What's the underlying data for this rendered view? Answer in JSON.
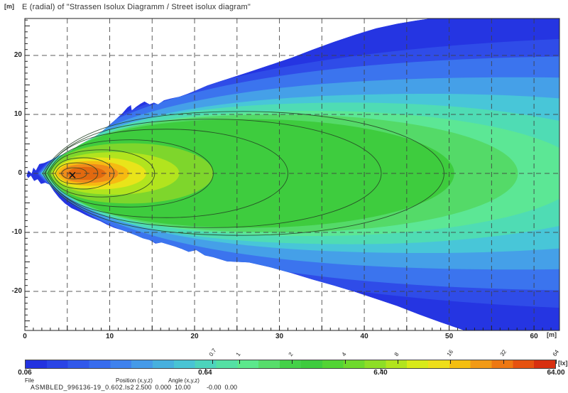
{
  "window": {
    "y_axis_unit": "[m]",
    "x_axis_unit": "[m]",
    "colorbar_unit": "[lx]"
  },
  "footer": {
    "file_label": "File",
    "file_value": "ASMBLED_996136-19_0.602.ls2",
    "position_label": "Position (x,y,z)",
    "position_value": "2.500  0.000  10.00",
    "angle_label": "Angle (x,y,z)",
    "angle_value": "-0.00  0.00"
  },
  "chart_data": {
    "type": "heatmap",
    "subtype": "isolux-contour-diagram",
    "title": "E (radial) of \"Strassen Isolux Diagramm / Street isolux diagram\"",
    "axes": {
      "x": {
        "min": 0,
        "max": 63,
        "unit": "m",
        "tick_step_minor": 1,
        "tick_step_major": 5,
        "labels": [
          {
            "m": 0,
            "label": "0"
          },
          {
            "m": 10,
            "label": "10"
          },
          {
            "m": 20,
            "label": "20"
          },
          {
            "m": 30,
            "label": "30"
          },
          {
            "m": 40,
            "label": "40"
          },
          {
            "m": 50,
            "label": "50"
          },
          {
            "m": 60,
            "label": "60"
          }
        ],
        "grid_m": [
          5,
          10,
          15,
          20,
          25,
          30,
          35,
          40,
          45,
          50,
          55,
          60
        ]
      },
      "y": {
        "min": -26.5,
        "max": 26.3,
        "unit": "m",
        "tick_step_minor": 1,
        "tick_step_major": 5,
        "labels": [
          {
            "m": 20,
            "label": "20"
          },
          {
            "m": 10,
            "label": "10"
          },
          {
            "m": 0,
            "label": "0"
          },
          {
            "m": -10,
            "label": "-10"
          },
          {
            "m": -20,
            "label": "-20"
          }
        ],
        "grid_m": [
          20,
          10,
          0,
          -10,
          -20
        ]
      }
    },
    "colorbar": {
      "scale": "log",
      "min_lx": 0.06,
      "max_lx": 64.0,
      "bottom_labels": [
        {
          "value": 0.06,
          "label": "0.06"
        },
        {
          "value": 0.64,
          "label": "0.64"
        },
        {
          "value": 6.4,
          "label": "6.40"
        },
        {
          "value": 64.0,
          "label": "64.00"
        }
      ],
      "top_tick_labels": [
        {
          "value": 0.7,
          "label": "0.7"
        },
        {
          "value": 1,
          "label": "1"
        },
        {
          "value": 2,
          "label": "2"
        },
        {
          "value": 4,
          "label": "4"
        },
        {
          "value": 8,
          "label": "8"
        },
        {
          "value": 16,
          "label": "16"
        },
        {
          "value": 32,
          "label": "32"
        },
        {
          "value": 64,
          "label": "64"
        }
      ],
      "colors": [
        "#2232e0",
        "#2a44e6",
        "#3158ea",
        "#386cee",
        "#3f82ee",
        "#459ae8",
        "#47b0de",
        "#49c4d4",
        "#4dd4bc",
        "#54e0a4",
        "#5ce88c",
        "#57dd6b",
        "#44d148",
        "#3ecc3e",
        "#52d434",
        "#6ed92c",
        "#8ede26",
        "#b2e41e",
        "#d8ea18",
        "#eede1a",
        "#f4be10",
        "#f29a16",
        "#ee7812",
        "#e65210",
        "#d83010"
      ]
    },
    "luminaire_marker_m": {
      "x": 5.6,
      "y": -0.3
    },
    "beam_outline_m": [
      [
        0.2,
        -0.4
      ],
      [
        0.4,
        0.5
      ],
      [
        0.8,
        0.0
      ],
      [
        1.0,
        1.0
      ],
      [
        1.3,
        0.5
      ],
      [
        1.7,
        1.6
      ],
      [
        2.3,
        1.8
      ],
      [
        3.1,
        2.3
      ],
      [
        3.9,
        2.9
      ],
      [
        4.8,
        3.4
      ],
      [
        5.6,
        4.0
      ],
      [
        6.4,
        4.8
      ],
      [
        7.3,
        5.5
      ],
      [
        8.1,
        6.1
      ],
      [
        9.0,
        7.0
      ],
      [
        9.8,
        8.0
      ],
      [
        10.6,
        9.0
      ],
      [
        11.5,
        10.2
      ],
      [
        12.1,
        11.2
      ],
      [
        12.5,
        11.6
      ],
      [
        12.6,
        10.7
      ],
      [
        13.1,
        11.3
      ],
      [
        13.6,
        11.8
      ],
      [
        14.1,
        12.2
      ],
      [
        14.7,
        11.7
      ],
      [
        15.2,
        12.0
      ],
      [
        15.7,
        11.7
      ],
      [
        16.4,
        12.4
      ],
      [
        17.2,
        12.7
      ],
      [
        18.2,
        13.0
      ],
      [
        19.2,
        13.5
      ],
      [
        20.2,
        14.1
      ],
      [
        21.5,
        14.9
      ],
      [
        23.8,
        16.0
      ],
      [
        26.4,
        17.2
      ],
      [
        28.9,
        18.4
      ],
      [
        31.4,
        19.6
      ],
      [
        33.9,
        21.0
      ],
      [
        36.4,
        22.3
      ],
      [
        38.9,
        23.5
      ],
      [
        41.4,
        24.6
      ],
      [
        43.9,
        25.4
      ],
      [
        46.0,
        25.9
      ],
      [
        47.9,
        26.3
      ],
      [
        63.0,
        26.3
      ],
      [
        63.0,
        -26.6
      ],
      [
        51.7,
        -26.6
      ],
      [
        48.9,
        -25.2
      ],
      [
        46.4,
        -23.9
      ],
      [
        43.9,
        -22.5
      ],
      [
        41.4,
        -21.3
      ],
      [
        38.9,
        -20.1
      ],
      [
        36.4,
        -19.0
      ],
      [
        33.9,
        -18.0
      ],
      [
        31.4,
        -16.9
      ],
      [
        28.9,
        -15.9
      ],
      [
        26.4,
        -15.1
      ],
      [
        23.8,
        -14.9
      ],
      [
        22.2,
        -14.2
      ],
      [
        21.2,
        -13.9
      ],
      [
        20.2,
        -13.0
      ],
      [
        19.3,
        -13.3
      ],
      [
        18.5,
        -12.8
      ],
      [
        17.7,
        -12.4
      ],
      [
        16.8,
        -12.0
      ],
      [
        16.1,
        -11.7
      ],
      [
        15.4,
        -11.9
      ],
      [
        14.7,
        -11.3
      ],
      [
        13.9,
        -11.0
      ],
      [
        13.1,
        -10.5
      ],
      [
        12.2,
        -10.0
      ],
      [
        11.4,
        -9.6
      ],
      [
        10.5,
        -9.2
      ],
      [
        9.7,
        -8.7
      ],
      [
        8.9,
        -8.1
      ],
      [
        8.0,
        -7.6
      ],
      [
        7.2,
        -7.1
      ],
      [
        6.4,
        -6.5
      ],
      [
        5.5,
        -5.9
      ],
      [
        4.7,
        -5.1
      ],
      [
        4.0,
        -4.1
      ],
      [
        3.4,
        -3.0
      ],
      [
        2.9,
        -1.9
      ],
      [
        2.4,
        -1.6
      ],
      [
        1.9,
        -1.8
      ],
      [
        1.5,
        -1.0
      ],
      [
        1.1,
        -1.3
      ],
      [
        0.7,
        -0.4
      ],
      [
        0.4,
        -0.8
      ]
    ],
    "bands": [
      {
        "x0_m": 1.4,
        "x1_m": 172.8,
        "half_width_m": 23.5,
        "color": "#2f4ce8",
        "approx_min_lx": 0.08
      },
      {
        "x0_m": 1.6,
        "x1_m": 139.3,
        "half_width_m": 19.9,
        "color": "#3b74ee",
        "approx_min_lx": 0.11
      },
      {
        "x0_m": 1.8,
        "x1_m": 114.2,
        "half_width_m": 16.3,
        "color": "#45a0e8",
        "approx_min_lx": 0.15
      },
      {
        "x0_m": 1.9,
        "x1_m": 93.3,
        "half_width_m": 13.5,
        "color": "#48c6d8",
        "approx_min_lx": 0.21
      },
      {
        "x0_m": 2.1,
        "x1_m": 74.9,
        "half_width_m": 12.0,
        "color": "#4fdcb4",
        "approx_min_lx": 0.29
      },
      {
        "x0_m": 2.3,
        "x1_m": 65.7,
        "half_width_m": 10.6,
        "color": "#5ce795",
        "approx_min_lx": 0.4
      },
      {
        "x0_m": 2.4,
        "x1_m": 58.1,
        "half_width_m": 10.0,
        "color": "#54da68",
        "approx_min_lx": 0.55
      },
      {
        "x0_m": 2.6,
        "x1_m": 50.6,
        "half_width_m": 9.2,
        "color": "#3ecc3e",
        "approx_min_lx": 0.76
      },
      {
        "x0_m": 2.8,
        "x1_m": 22.2,
        "half_width_m": 5.1,
        "color": "#7ed62c",
        "approx_min_lx": 4.0
      },
      {
        "x0_m": 3.1,
        "x1_m": 18.2,
        "half_width_m": 3.6,
        "color": "#b2e41e",
        "approx_min_lx": 5.6
      },
      {
        "x0_m": 3.3,
        "x1_m": 14.3,
        "half_width_m": 2.7,
        "color": "#e9e41a",
        "approx_min_lx": 7.8
      },
      {
        "x0_m": 3.7,
        "x1_m": 12.3,
        "half_width_m": 2.1,
        "color": "#f6ba12",
        "approx_min_lx": 11.0
      },
      {
        "x0_m": 4.1,
        "x1_m": 11.0,
        "half_width_m": 1.6,
        "color": "#f08c1a",
        "approx_min_lx": 15.0
      },
      {
        "x0_m": 5.0,
        "x1_m": 9.5,
        "half_width_m": 1.1,
        "color": "#e2690f",
        "approx_min_lx": 21.0
      }
    ],
    "base_band_color": "#2535e2",
    "contours": [
      {
        "x0_m": 2.1,
        "x1_m": 49.4,
        "half_width_m": 10.5,
        "level_lx": 0.7
      },
      {
        "x0_m": 2.3,
        "x1_m": 42.0,
        "half_width_m": 9.2,
        "level_lx": 1
      },
      {
        "x0_m": 2.4,
        "x1_m": 31.0,
        "half_width_m": 7.5,
        "level_lx": 2
      },
      {
        "x0_m": 2.7,
        "x1_m": 22.2,
        "half_width_m": 5.7,
        "level_lx": 4
      },
      {
        "x0_m": 2.9,
        "x1_m": 15.3,
        "half_width_m": 4.0,
        "level_lx": 8
      },
      {
        "x0_m": 3.3,
        "x1_m": 10.5,
        "half_width_m": 2.65,
        "level_lx": 16
      },
      {
        "x0_m": 3.6,
        "x1_m": 8.6,
        "half_width_m": 1.8,
        "level_lx": 32
      },
      {
        "x0_m": 4.3,
        "x1_m": 7.3,
        "half_width_m": 0.96,
        "level_lx": 40
      }
    ]
  }
}
